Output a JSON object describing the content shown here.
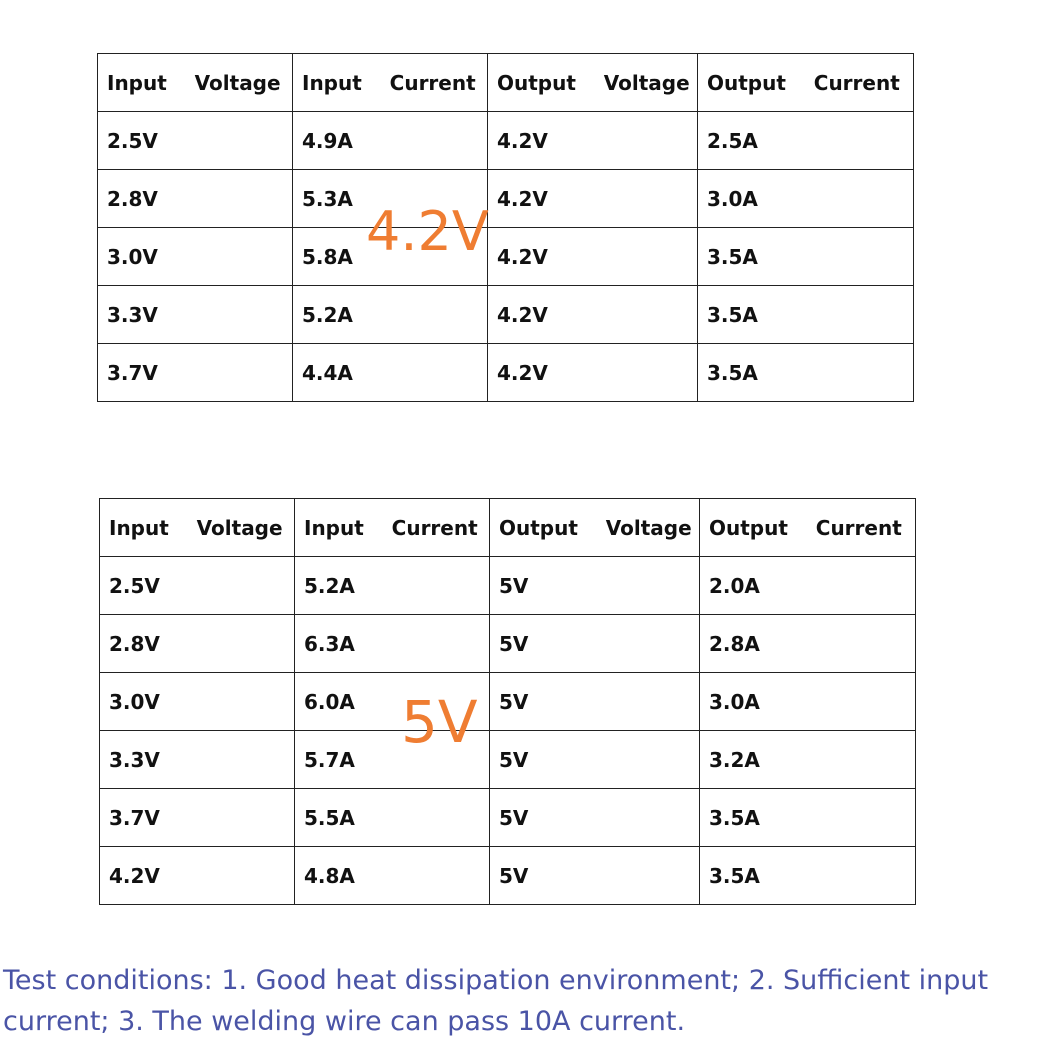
{
  "tables": [
    {
      "label": "4.2V",
      "headers": [
        "Input    Voltage",
        "Input    Current",
        "Output    Voltage",
        "Output    Current"
      ],
      "rows": [
        [
          "2.5V",
          "4.9A",
          "4.2V",
          "2.5A"
        ],
        [
          "2.8V",
          "5.3A",
          "4.2V",
          "3.0A"
        ],
        [
          "3.0V",
          "5.8A",
          "4.2V",
          "3.5A"
        ],
        [
          "3.3V",
          "5.2A",
          "4.2V",
          "3.5A"
        ],
        [
          "3.7V",
          "4.4A",
          "4.2V",
          "3.5A"
        ]
      ]
    },
    {
      "label": "5V",
      "headers": [
        "Input    Voltage",
        "Input    Current",
        "Output    Voltage",
        "Output    Current"
      ],
      "rows": [
        [
          "2.5V",
          "5.2A",
          "5V",
          "2.0A"
        ],
        [
          "2.8V",
          "6.3A",
          "5V",
          "2.8A"
        ],
        [
          "3.0V",
          "6.0A",
          "5V",
          "3.0A"
        ],
        [
          "3.3V",
          "5.7A",
          "5V",
          "3.2A"
        ],
        [
          "3.7V",
          "5.5A",
          "5V",
          "3.5A"
        ],
        [
          "4.2V",
          "4.8A",
          "5V",
          "3.5A"
        ]
      ]
    }
  ],
  "footnote": "Test conditions: 1. Good heat dissipation environment; 2. Sufficient input current; 3. The welding wire can pass 10A current.",
  "colors": {
    "label": "#ef7d32",
    "footnote": "#4a54a6",
    "border": "#222222"
  }
}
